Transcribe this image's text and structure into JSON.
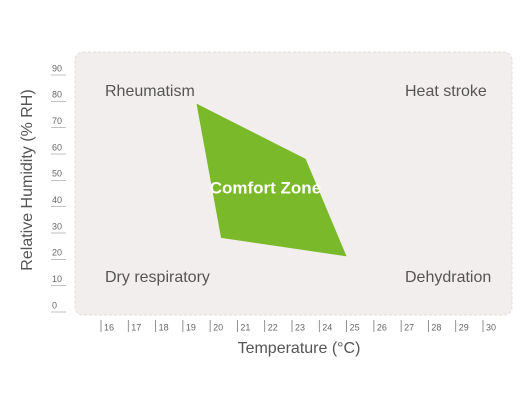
{
  "chart_data": {
    "type": "polygon",
    "x_label": "Temperature (°C)",
    "y_label": "Relative Humidity (% RH)",
    "xlim": [
      16,
      30
    ],
    "xticks": [
      16,
      17,
      18,
      19,
      20,
      21,
      22,
      23,
      24,
      25,
      26,
      27,
      28,
      29,
      30
    ],
    "ylim": [
      0,
      90
    ],
    "yticks": [
      0,
      10,
      20,
      30,
      40,
      50,
      60,
      70,
      80,
      90
    ],
    "series": [
      {
        "name": "Comfort Zone",
        "color": "#7ab929",
        "x": [
          19.5,
          23.5,
          25,
          20.4
        ],
        "values": [
          78,
          57,
          20,
          27
        ]
      }
    ],
    "annotations": [
      "Rheumatism",
      "Heat stroke",
      "Dry respiratory",
      "Dehydration"
    ]
  }
}
